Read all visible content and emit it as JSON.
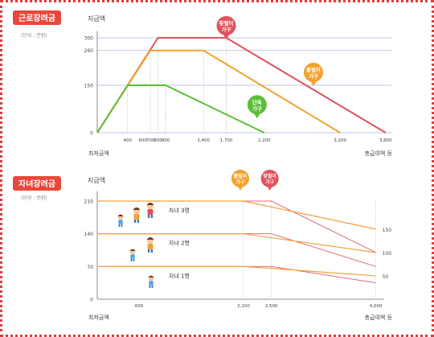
{
  "charts": [
    {
      "title": "근로장려금",
      "unit": "(단위 : 만원)",
      "ylabel": "지급액",
      "xlabel_left": "최저금액",
      "xlabel_right": "총급여액 등",
      "colors": {
        "title_bg": "#e8473a",
        "couple": "#e0525e",
        "single_earner": "#f3a22a",
        "single": "#5bbf35"
      }
    },
    {
      "title": "자녀장려금",
      "unit": "(단위 : 만원)",
      "ylabel": "지급액",
      "xlabel_left": "최저금액",
      "xlabel_right": "총급여액 등",
      "colors": {
        "title_bg": "#e8473a",
        "couple": "#e0525e",
        "single_earner": "#f3a22a"
      }
    }
  ],
  "chart_data": [
    {
      "type": "line",
      "title": "근로장려금",
      "ylabel": "지급액",
      "xlabel": "총급여액 등",
      "y_ticks": [
        0,
        150,
        260,
        300
      ],
      "x_ticks": [
        400,
        600,
        700,
        800,
        900,
        1400,
        1700,
        2200,
        3200,
        3800
      ],
      "x_tick_labels": [
        "400",
        "600",
        "700",
        "800",
        "900",
        "1,400",
        "1,700",
        "2,200",
        "3,200",
        "3,800"
      ],
      "ylim": [
        0,
        300
      ],
      "series": [
        {
          "name": "맞벌이 가구",
          "color": "#e0525e",
          "points": [
            [
              0,
              0
            ],
            [
              800,
              300
            ],
            [
              1700,
              300
            ],
            [
              3800,
              0
            ]
          ]
        },
        {
          "name": "홑벌이 가구",
          "color": "#f3a22a",
          "points": [
            [
              0,
              0
            ],
            [
              700,
              260
            ],
            [
              1400,
              260
            ],
            [
              3200,
              0
            ]
          ]
        },
        {
          "name": "단독 가구",
          "color": "#5bbf35",
          "points": [
            [
              0,
              0
            ],
            [
              400,
              150
            ],
            [
              900,
              150
            ],
            [
              2200,
              0
            ]
          ]
        }
      ],
      "reference_lines": [
        300,
        260,
        150,
        0
      ]
    },
    {
      "type": "line",
      "title": "자녀장려금",
      "ylabel": "지급액",
      "xlabel": "총급여액 등",
      "y_ticks": [
        0,
        70,
        140,
        210
      ],
      "x_ticks": [
        600,
        2100,
        2500,
        4000
      ],
      "x_tick_labels": [
        "600",
        "2,100",
        "2,500",
        "4,000"
      ],
      "ylim": [
        0,
        210
      ],
      "series_labels": [
        "홑벌이 가구",
        "맞벌이 가구"
      ],
      "group_labels": [
        "자녀 3명",
        "자녀 2명",
        "자녀 1명"
      ],
      "end_value_labels": [
        "150",
        "100",
        "50"
      ],
      "series": [
        {
          "name": "자녀 3명",
          "points": [
            [
              0,
              210
            ],
            [
              2100,
              210
            ],
            [
              4000,
              150
            ]
          ],
          "points_couple": [
            [
              0,
              210
            ],
            [
              2500,
              210
            ],
            [
              4000,
              100
            ]
          ]
        },
        {
          "name": "자녀 2명",
          "points": [
            [
              0,
              140
            ],
            [
              2100,
              140
            ],
            [
              4000,
              100
            ]
          ],
          "points_couple": [
            [
              0,
              140
            ],
            [
              2500,
              140
            ],
            [
              4000,
              70
            ]
          ]
        },
        {
          "name": "자녀 1명",
          "points": [
            [
              0,
              70
            ],
            [
              2100,
              70
            ],
            [
              4000,
              50
            ]
          ],
          "points_couple": [
            [
              0,
              70
            ],
            [
              2500,
              70
            ],
            [
              4000,
              35
            ]
          ]
        }
      ]
    }
  ]
}
